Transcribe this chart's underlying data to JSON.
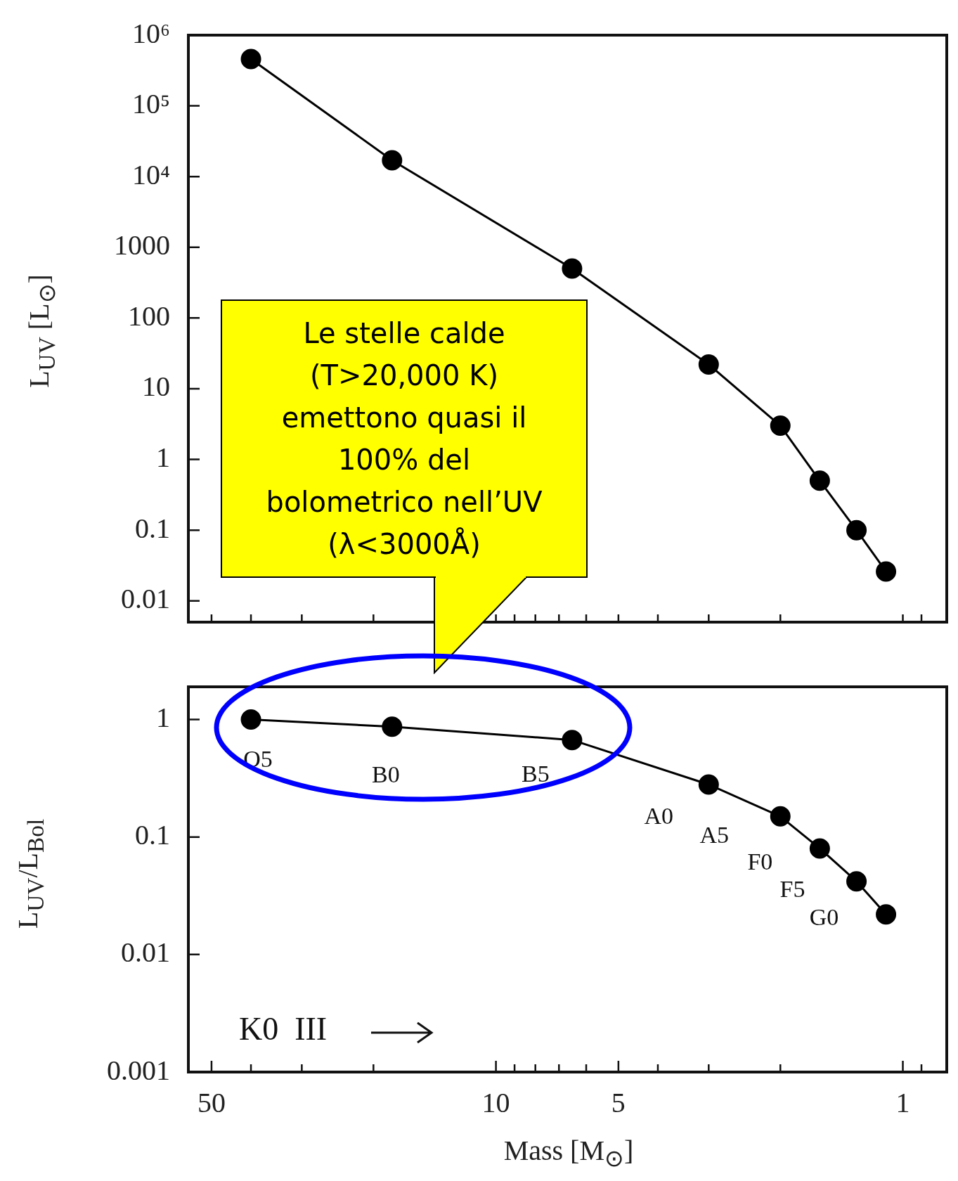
{
  "chart_data": [
    {
      "type": "line",
      "ylabel": "L$_{UV}$  [L$_{⊙}$]",
      "x": [
        40,
        18,
        6.5,
        3,
        2,
        1.6,
        1.3,
        1.1
      ],
      "series": [
        {
          "color": "#000000",
          "values": [
            460000,
            17000,
            500,
            22,
            3,
            0.5,
            0.1,
            0.026
          ]
        }
      ],
      "marker": "circle",
      "log": "xy",
      "grid": false,
      "tick_labels": "y",
      "xlim": [
        57,
        0.78
      ],
      "xticks": [
        {
          "value": 50,
          "label": null
        },
        {
          "value": 40,
          "label": null
        },
        {
          "value": 30,
          "label": null
        },
        {
          "value": 20,
          "label": null
        },
        {
          "value": 10,
          "label": null
        },
        {
          "value": 9,
          "label": null
        },
        {
          "value": 8,
          "label": null
        },
        {
          "value": 7,
          "label": null
        },
        {
          "value": 6,
          "label": null
        },
        {
          "value": 5,
          "label": null
        },
        {
          "value": 4,
          "label": null
        },
        {
          "value": 3,
          "label": null
        },
        {
          "value": 2,
          "label": null
        },
        {
          "value": 1,
          "label": null
        },
        {
          "value": 0.9,
          "label": null
        }
      ],
      "ylim": [
        0.005,
        1000000
      ],
      "yticks": [
        {
          "value": 1000000,
          "label": "10⁶"
        },
        {
          "value": 100000,
          "label": "10⁵"
        },
        {
          "value": 10000,
          "label": "10⁴"
        },
        1000,
        100,
        10,
        1,
        0.1,
        0.01
      ],
      "annotations": [
        "Le stelle calde\n(T>20,000 K)\nemettono quasi il\n100% del\nbolometrico nell’UV\n(λ<3000Å)"
      ]
    },
    {
      "type": "line",
      "xlabel": "Mass [M$_{⊙}$]",
      "ylabel": "L$_{UV}$/L$_{Bol}$",
      "x": [
        40,
        18,
        6.5,
        3,
        2,
        1.6,
        1.3,
        1.1
      ],
      "series": [
        {
          "color": "#000000",
          "values": [
            1.0,
            0.87,
            0.67,
            0.28,
            0.15,
            0.08,
            0.042,
            0.022
          ]
        }
      ],
      "marker": "circle",
      "log": "xy",
      "grid": false,
      "xlim": [
        57,
        0.78
      ],
      "xticks": [
        {
          "value": 50,
          "label": "50"
        },
        {
          "value": 40,
          "label": null
        },
        {
          "value": 30,
          "label": null
        },
        {
          "value": 20,
          "label": null
        },
        {
          "value": 10,
          "label": "10"
        },
        {
          "value": 9,
          "label": null
        },
        {
          "value": 8,
          "label": null
        },
        {
          "value": 7,
          "label": null
        },
        {
          "value": 6,
          "label": null
        },
        {
          "value": 5,
          "label": "5"
        },
        {
          "value": 4,
          "label": null
        },
        {
          "value": 3,
          "label": null
        },
        {
          "value": 2,
          "label": null
        },
        {
          "value": 1,
          "label": "1"
        },
        {
          "value": 0.9,
          "label": null
        }
      ],
      "ylim": [
        0.001,
        1.9
      ],
      "yticks": [
        1,
        0.1,
        0.01,
        0.001
      ],
      "annotations": [
        "K0  III",
        {
          "text": "O5",
          "x": 40,
          "y": 1.0
        },
        {
          "text": "B0",
          "x": 18,
          "y": 0.87
        },
        {
          "text": "B5",
          "x": 6.5,
          "y": 0.67
        },
        {
          "text": "A0",
          "x": 3,
          "y": 0.28
        },
        {
          "text": "A5",
          "x": 2,
          "y": 0.15
        },
        {
          "text": "F0",
          "x": 1.6,
          "y": 0.08
        },
        {
          "text": "F5",
          "x": 1.3,
          "y": 0.042
        },
        {
          "text": "G0",
          "x": 1.1,
          "y": 0.022
        }
      ]
    }
  ]
}
